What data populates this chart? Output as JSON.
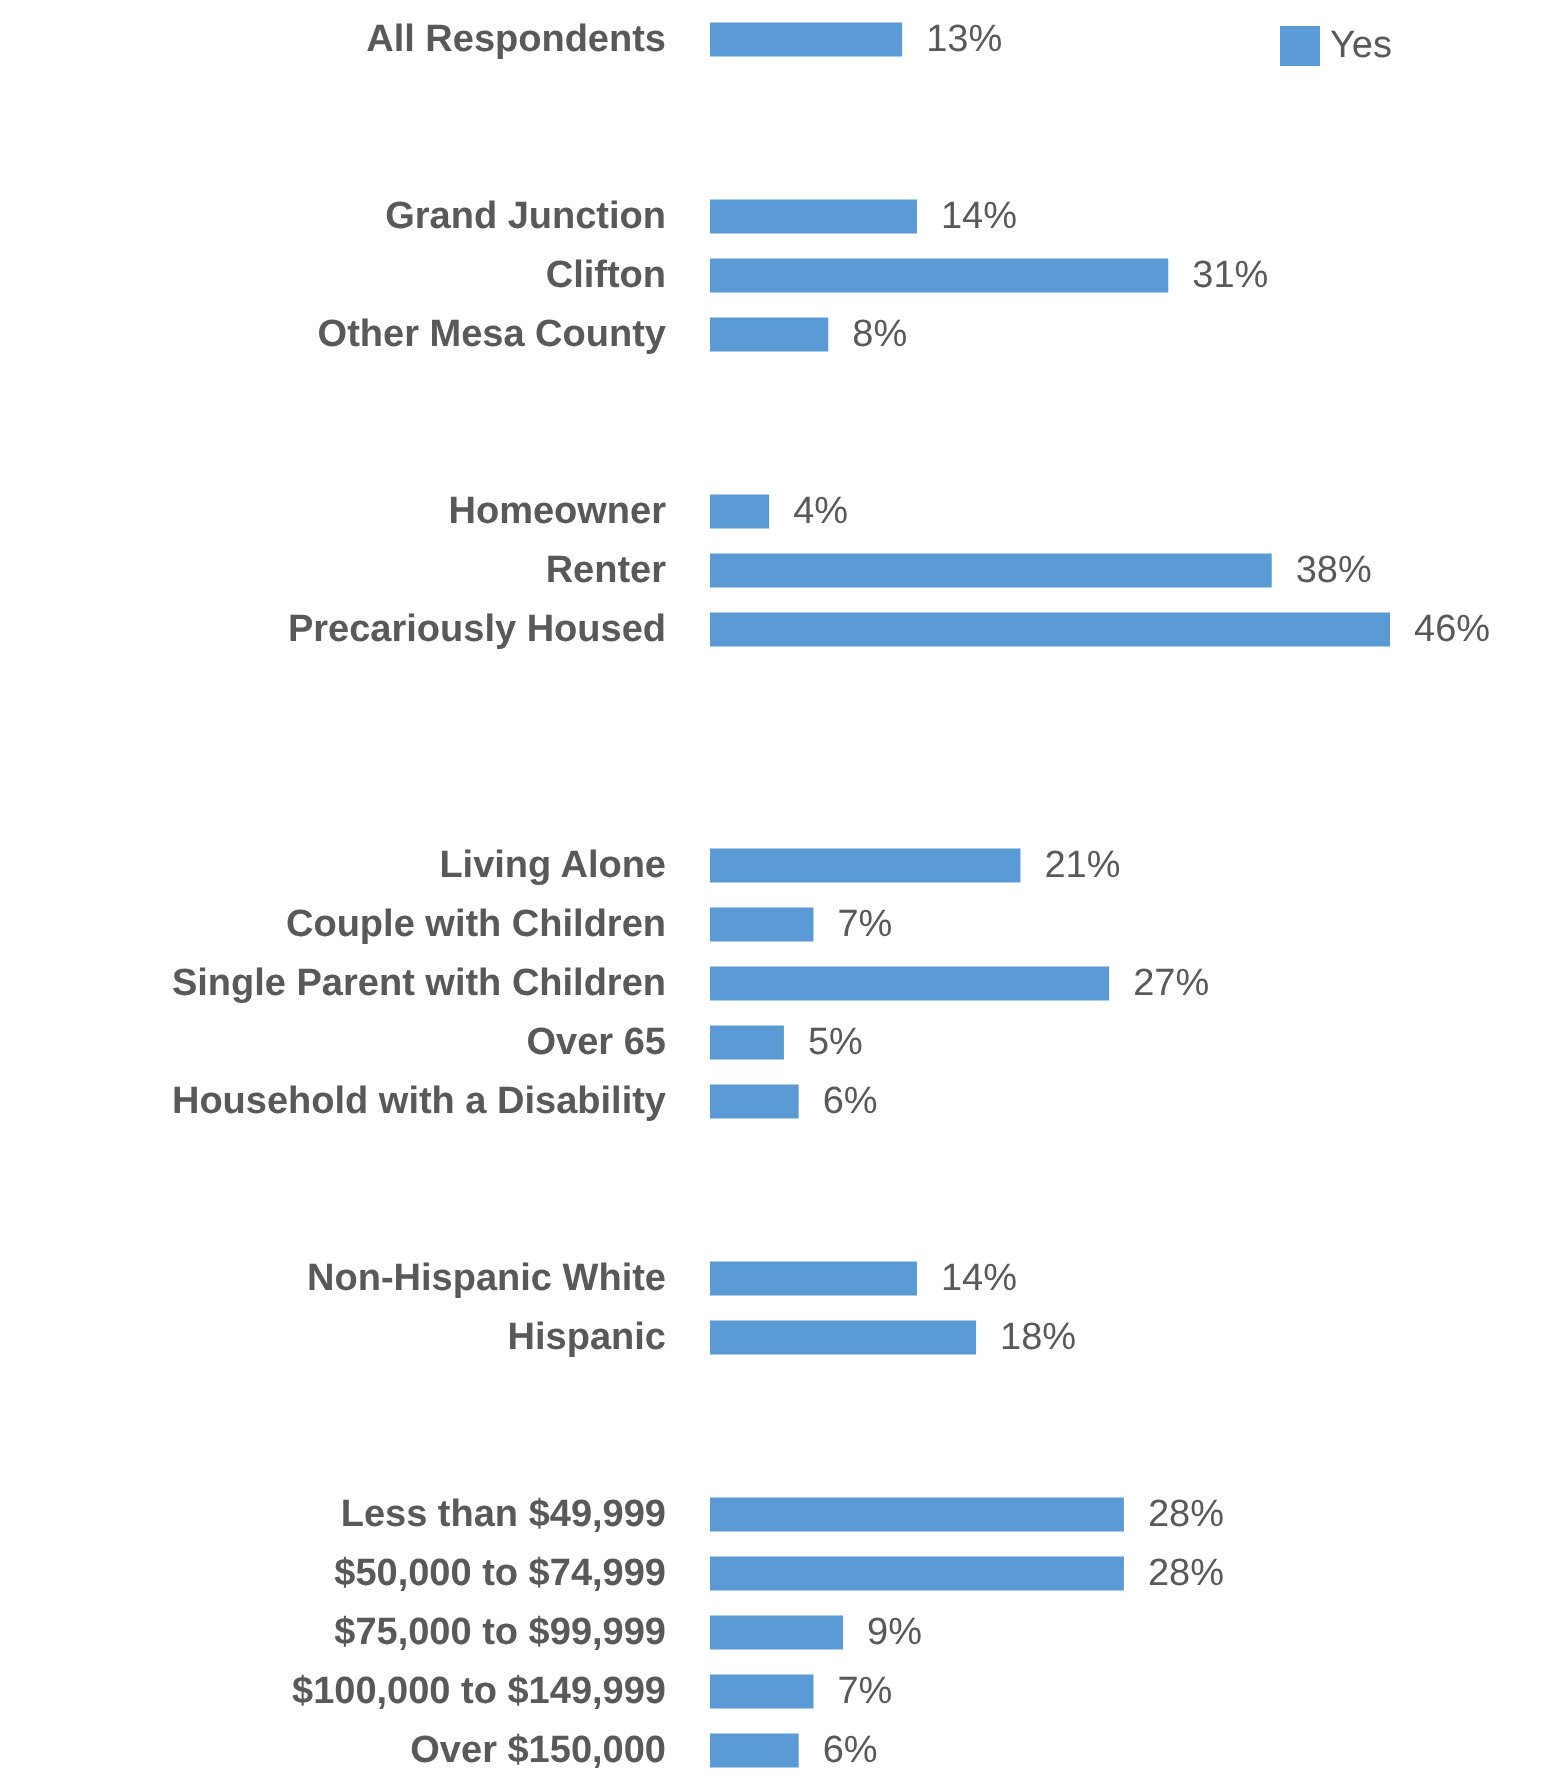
{
  "chart_data": {
    "type": "bar",
    "orientation": "horizontal",
    "legend": "top right",
    "categories": [
      "All Respondents",
      null,
      null,
      "Grand Junction",
      "Clifton",
      "Other Mesa County",
      null,
      null,
      "Homeowner",
      "Renter",
      "Precariously Housed",
      null,
      null,
      null,
      "Living Alone",
      "Couple with Children",
      "Single Parent with Children",
      "Over 65",
      "Household with a Disability",
      null,
      null,
      "Non-Hispanic White",
      "Hispanic",
      null,
      null,
      "Less than $49,999",
      "$50,000 to $74,999",
      "$75,000 to $99,999",
      "$100,000 to $149,999",
      "Over $150,000"
    ],
    "series": [
      {
        "name": "Yes",
        "color": "#5b9bd5",
        "values": [
          13,
          null,
          null,
          14,
          31,
          8,
          null,
          null,
          4,
          38,
          46,
          null,
          null,
          null,
          21,
          7,
          27,
          5,
          6,
          null,
          null,
          14,
          18,
          null,
          null,
          28,
          28,
          9,
          7,
          6
        ],
        "value_labels": [
          "13%",
          null,
          null,
          "14%",
          "31%",
          "8%",
          null,
          null,
          "4%",
          "38%",
          "46%",
          null,
          null,
          null,
          "21%",
          "7%",
          "27%",
          "5%",
          "6%",
          null,
          null,
          "14%",
          "18%",
          null,
          null,
          "28%",
          "28%",
          "9%",
          "7%",
          "6%"
        ]
      }
    ]
  }
}
